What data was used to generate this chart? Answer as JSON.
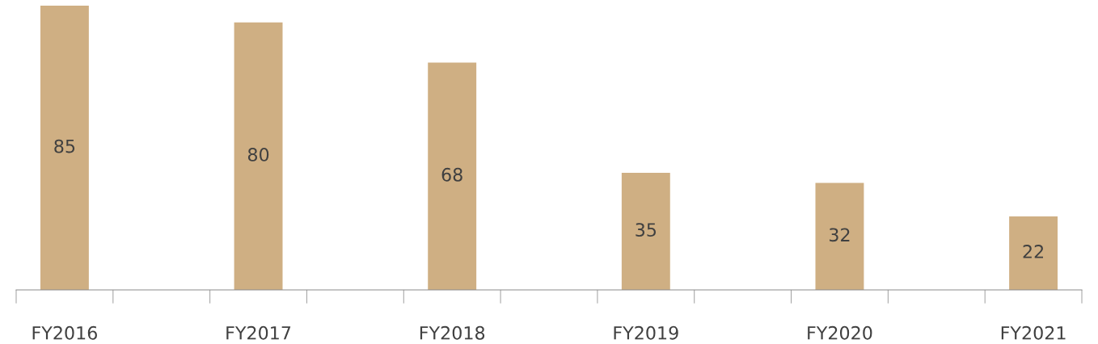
{
  "chart_data": {
    "type": "bar",
    "categories": [
      "FY2016",
      "FY2017",
      "FY2018",
      "FY2019",
      "FY2020",
      "FY2021"
    ],
    "values": [
      85,
      80,
      68,
      35,
      32,
      22
    ],
    "color": "#cfaf83",
    "data_labels": true,
    "grid": false,
    "legend": false
  }
}
